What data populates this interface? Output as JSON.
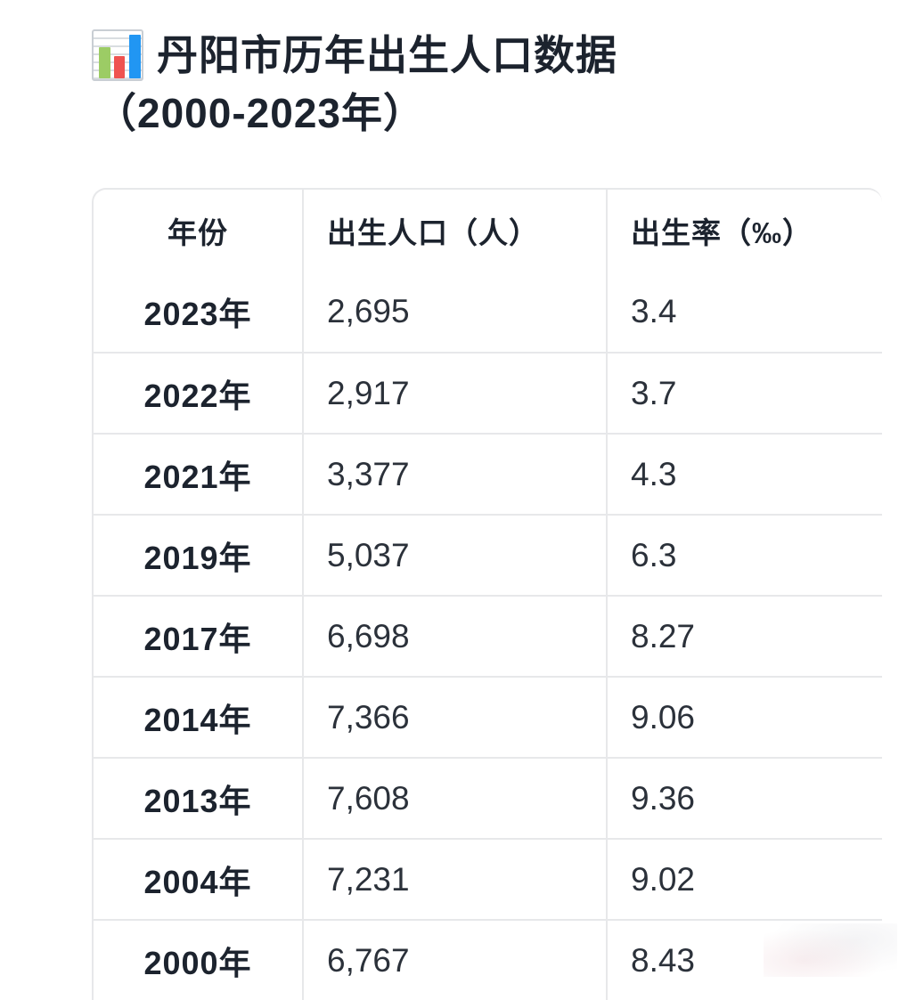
{
  "title": {
    "icon": "bar-chart-emoji",
    "line1": "丹阳市历年出生人口数据",
    "line2": "（2000-2023年）"
  },
  "table": {
    "headers": [
      "年份",
      "出生人口（人）",
      "出生率（‰）"
    ],
    "rows": [
      {
        "year": "2023年",
        "births": "2,695",
        "rate": "3.4"
      },
      {
        "year": "2022年",
        "births": "2,917",
        "rate": "3.7"
      },
      {
        "year": "2021年",
        "births": "3,377",
        "rate": "4.3"
      },
      {
        "year": "2019年",
        "births": "5,037",
        "rate": "6.3"
      },
      {
        "year": "2017年",
        "births": "6,698",
        "rate": "8.27"
      },
      {
        "year": "2014年",
        "births": "7,366",
        "rate": "9.06"
      },
      {
        "year": "2013年",
        "births": "7,608",
        "rate": "9.36"
      },
      {
        "year": "2004年",
        "births": "7,231",
        "rate": "9.02"
      },
      {
        "year": "2000年",
        "births": "6,767",
        "rate": "8.43"
      }
    ]
  },
  "colors": {
    "text_dark": "#1c232e",
    "table_border": "#e7e8ea",
    "icon_green": "#9ccc65",
    "icon_red": "#ef5350",
    "icon_blue": "#2196f3"
  },
  "chart_data": {
    "type": "table",
    "title": "丹阳市历年出生人口数据（2000-2023年）",
    "columns": [
      "年份",
      "出生人口（人）",
      "出生率（‰）"
    ],
    "rows": [
      [
        "2023年",
        "2,695",
        "3.4"
      ],
      [
        "2022年",
        "2,917",
        "3.7"
      ],
      [
        "2021年",
        "3,377",
        "4.3"
      ],
      [
        "2019年",
        "5,037",
        "6.3"
      ],
      [
        "2017年",
        "6,698",
        "8.27"
      ],
      [
        "2014年",
        "7,366",
        "9.06"
      ],
      [
        "2013年",
        "7,608",
        "9.36"
      ],
      [
        "2004年",
        "7,231",
        "9.02"
      ],
      [
        "2000年",
        "6,767",
        "8.43"
      ]
    ],
    "years": [
      2023,
      2022,
      2021,
      2019,
      2017,
      2014,
      2013,
      2004,
      2000
    ],
    "series": [
      {
        "name": "出生人口（人）",
        "values": [
          2695,
          2917,
          3377,
          5037,
          6698,
          7366,
          7608,
          7231,
          6767
        ]
      },
      {
        "name": "出生率（‰）",
        "values": [
          3.4,
          3.7,
          4.3,
          6.3,
          8.27,
          9.06,
          9.36,
          9.02,
          8.43
        ]
      }
    ],
    "notes": "bottom row partially cut off by viewport"
  }
}
